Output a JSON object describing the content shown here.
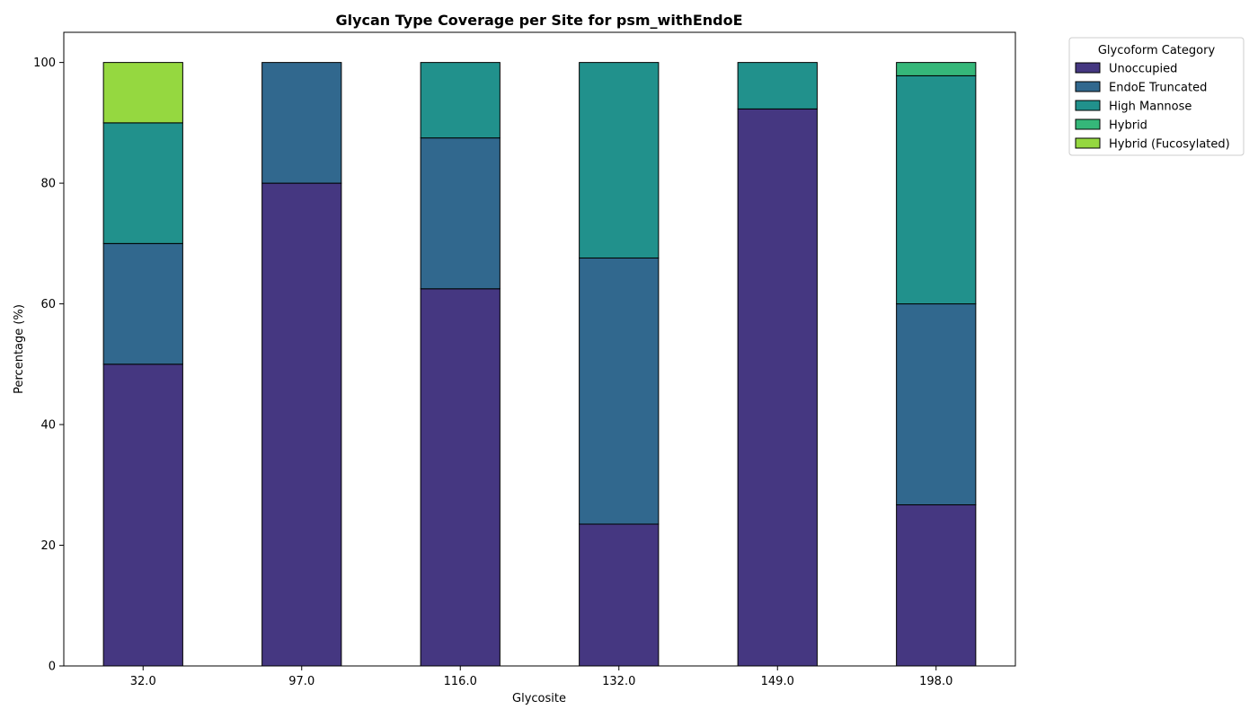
{
  "chart_data": {
    "type": "bar",
    "stacked": true,
    "title": "Glycan Type Coverage per Site for psm_withEndoE",
    "xlabel": "Glycosite",
    "ylabel": "Percentage (%)",
    "ylim": [
      0,
      105
    ],
    "yticks": [
      0,
      20,
      40,
      60,
      80,
      100
    ],
    "categories": [
      "32.0",
      "97.0",
      "116.0",
      "132.0",
      "149.0",
      "198.0"
    ],
    "series": [
      {
        "name": "Unoccupied",
        "color": "#453781",
        "values": [
          50.0,
          80.0,
          62.5,
          23.5,
          92.3,
          26.7
        ]
      },
      {
        "name": "EndoE Truncated",
        "color": "#31688e",
        "values": [
          20.0,
          20.0,
          25.0,
          44.1,
          0,
          33.3
        ]
      },
      {
        "name": "High Mannose",
        "color": "#21918c",
        "values": [
          20.0,
          0,
          12.5,
          32.4,
          7.7,
          37.8
        ]
      },
      {
        "name": "Hybrid",
        "color": "#35b779",
        "values": [
          0,
          0,
          0,
          0,
          0,
          2.2
        ]
      },
      {
        "name": "Hybrid (Fucosylated)",
        "color": "#95d840",
        "values": [
          10.0,
          0,
          0,
          0,
          0,
          0
        ]
      }
    ],
    "legend": {
      "title": "Glycoform Category",
      "placement": "outside-top-right"
    },
    "grid": false
  }
}
